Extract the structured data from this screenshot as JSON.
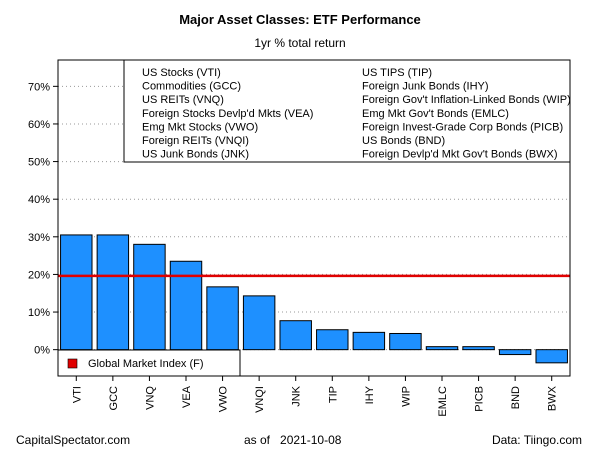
{
  "chart_data": {
    "type": "bar",
    "title": "Major Asset Classes: ETF Performance",
    "subtitle": "1yr % total return",
    "categories": [
      "VTI",
      "GCC",
      "VNQ",
      "VEA",
      "VWO",
      "VNQI",
      "JNK",
      "TIP",
      "IHY",
      "WIP",
      "EMLC",
      "PICB",
      "BND",
      "BWX"
    ],
    "values": [
      30.5,
      30.5,
      28.0,
      23.5,
      16.7,
      14.3,
      7.7,
      5.3,
      4.6,
      4.3,
      0.8,
      0.8,
      -1.3,
      -3.5
    ],
    "bar_color": "#1e90ff",
    "ylim": [
      -7,
      77
    ],
    "yticks": [
      0,
      10,
      20,
      30,
      40,
      50,
      60,
      70
    ],
    "ytick_labels": [
      "0%",
      "10%",
      "20%",
      "30%",
      "40%",
      "50%",
      "60%",
      "70%"
    ],
    "grid": "horizontal dotted",
    "reference_line": {
      "label": "Global Market Index (F)",
      "value": 19.6,
      "color": "#e00000"
    },
    "legend": {
      "placement": "top-right",
      "left_column": [
        "US Stocks (VTI)",
        "Commodities (GCC)",
        "US REITs (VNQ)",
        "Foreign Stocks Devlp'd Mkts (VEA)",
        "Emg Mkt Stocks (VWO)",
        "Foreign REITs (VNQI)",
        "US Junk Bonds (JNK)"
      ],
      "right_column": [
        "US TIPS (TIP)",
        "Foreign Junk Bonds (IHY)",
        "Foreign Gov't Inflation-Linked Bonds (WIP)",
        "Emg Mkt Gov't Bonds (EMLC)",
        "Foreign Invest-Grade Corp Bonds (PICB)",
        "US Bonds (BND)",
        "Foreign Devlp'd Mkt Gov't Bonds (BWX)"
      ]
    }
  },
  "footer": {
    "left": "CapitalSpectator.com",
    "center_prefix": "as of",
    "center_date": "2021-10-08",
    "right": "Data: Tiingo.com"
  }
}
